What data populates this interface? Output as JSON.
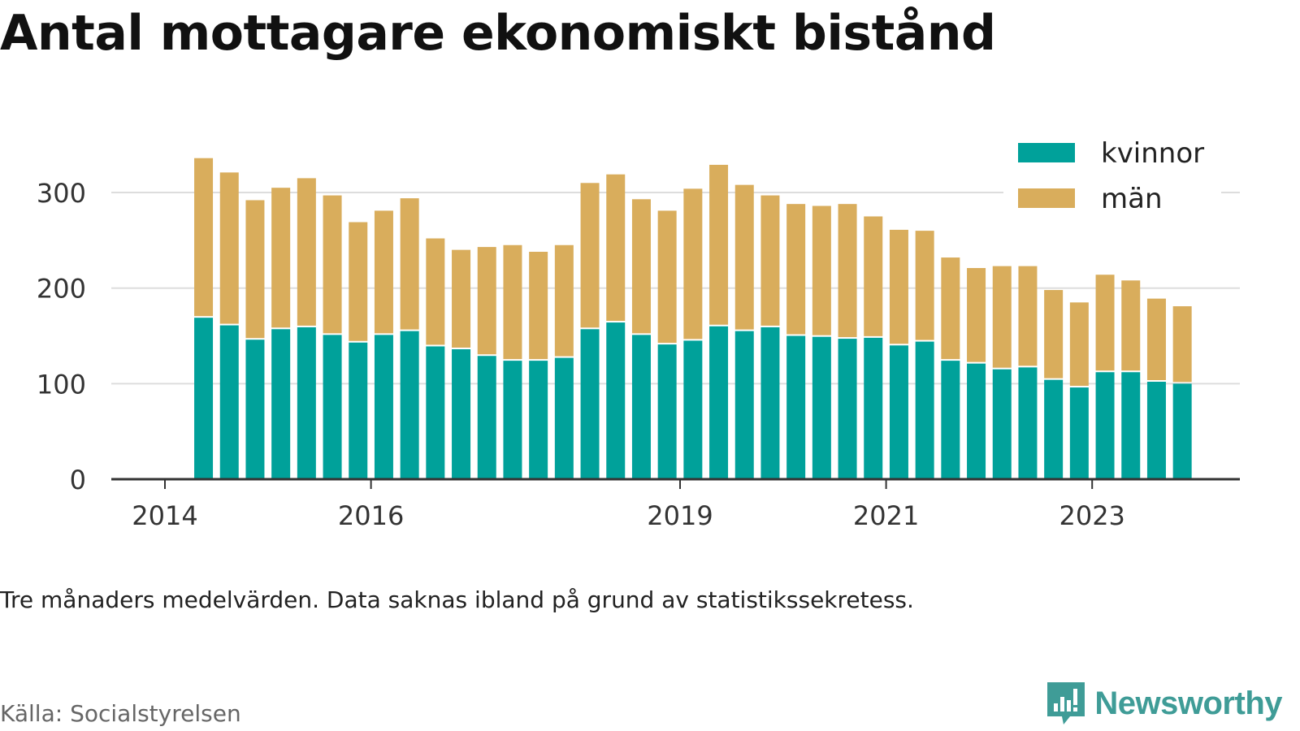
{
  "header": {
    "title": "Antal mottagare ekonomiskt bistånd"
  },
  "footer": {
    "note": "Tre månaders medelvärden. Data saknas ibland på grund av statistikssekretess.",
    "source": "Källa: Socialstyrelsen",
    "brand": "Newsworthy"
  },
  "colors": {
    "kvinnor": "#00a19a",
    "man": "#d9ad5c",
    "grid": "#dddddd",
    "axis": "#333333",
    "brand": "#3f9c97"
  },
  "chart_data": {
    "type": "bar",
    "stacked": true,
    "ylim": [
      0,
      340
    ],
    "yticks": [
      0,
      100,
      200,
      300
    ],
    "xticks": [
      {
        "label": "2014",
        "value": 2014.0
      },
      {
        "label": "2016",
        "value": 2016.0
      },
      {
        "label": "2019",
        "value": 2019.0
      },
      {
        "label": "2021",
        "value": 2021.0
      },
      {
        "label": "2023",
        "value": 2023.0
      }
    ],
    "legend_position": "top-right",
    "grid": true,
    "x": [
      2014.375,
      2014.625,
      2014.875,
      2015.125,
      2015.375,
      2015.625,
      2015.875,
      2016.125,
      2016.375,
      2016.625,
      2016.875,
      2017.125,
      2017.375,
      2017.625,
      2017.875,
      2018.125,
      2018.375,
      2018.625,
      2018.875,
      2019.125,
      2019.375,
      2019.625,
      2019.875,
      2020.125,
      2020.375,
      2020.625,
      2020.875,
      2021.125,
      2021.375,
      2021.625,
      2021.875,
      2022.125,
      2022.375,
      2022.625,
      2022.875,
      2023.125,
      2023.375,
      2023.625,
      2023.875
    ],
    "series": [
      {
        "name": "kvinnor",
        "values": [
          169,
          161,
          146,
          157,
          159,
          151,
          143,
          151,
          155,
          139,
          136,
          129,
          124,
          124,
          127,
          157,
          164,
          151,
          141,
          145,
          160,
          155,
          159,
          150,
          149,
          147,
          148,
          140,
          144,
          124,
          121,
          115,
          117,
          104,
          96,
          112,
          112,
          102,
          100
        ]
      },
      {
        "name": "män",
        "values": [
          167,
          160,
          146,
          148,
          156,
          146,
          126,
          130,
          139,
          113,
          104,
          114,
          121,
          114,
          118,
          153,
          155,
          142,
          140,
          159,
          169,
          153,
          138,
          138,
          137,
          141,
          127,
          121,
          116,
          108,
          100,
          108,
          106,
          94,
          89,
          102,
          96,
          87,
          81
        ]
      }
    ]
  }
}
